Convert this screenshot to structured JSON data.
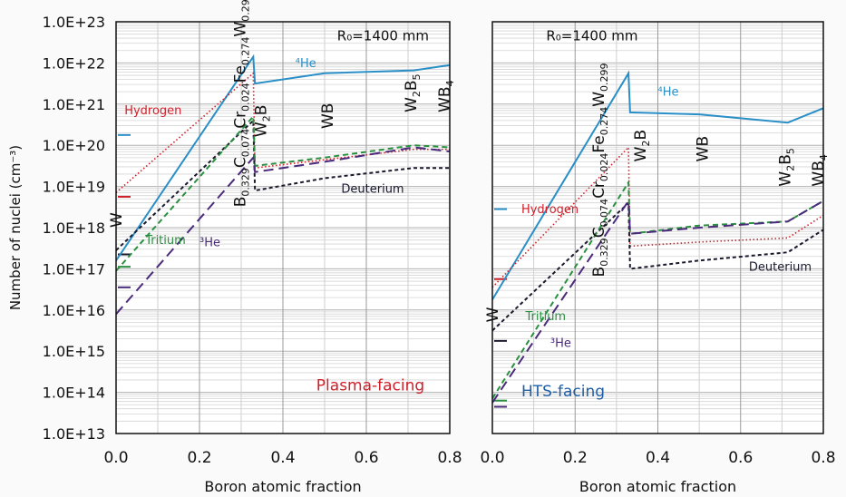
{
  "chart_data": [
    {
      "type": "line",
      "panel": "left",
      "annotation_R0": "R₀=1400 mm",
      "region_label": "Plasma-facing",
      "region_color": "#d0202a",
      "xlabel": "Boron atomic fraction",
      "ylabel": "Number of nuclei  (cm⁻³)",
      "yscale": "log",
      "ylim": [
        10000000000000.0,
        1e+23
      ],
      "xlim": [
        0,
        0.8
      ],
      "xticks": [
        "0.0",
        "0.2",
        "0.4",
        "0.6",
        "0.8"
      ],
      "yticks": [
        "1.0E+13",
        "1.0E+14",
        "1.0E+15",
        "1.0E+16",
        "1.0E+17",
        "1.0E+18",
        "1.0E+19",
        "1.0E+20",
        "1.0E+21",
        "1.0E+22",
        "1.0E+23"
      ],
      "grid": true,
      "series": [
        {
          "name": "4He",
          "label": "⁴He",
          "color": "#2a8fc7",
          "dash": "solid",
          "x": [
            0,
            0.329,
            0.333,
            0.5,
            0.714,
            0.8
          ],
          "log10y": [
            17.2,
            22.15,
            21.5,
            21.75,
            21.82,
            21.95
          ]
        },
        {
          "name": "Hydrogen",
          "label": "Hydrogen",
          "color": "#d0202a",
          "dash": "dot",
          "x": [
            0,
            0.329,
            0.333,
            0.5,
            0.714,
            0.8
          ],
          "log10y": [
            18.85,
            21.75,
            19.45,
            19.65,
            19.9,
            19.9
          ]
        },
        {
          "name": "Deuterium",
          "label": "Deuterium",
          "color": "#1a1a2e",
          "dash": "short",
          "x": [
            0,
            0.329,
            0.333,
            0.5,
            0.714,
            0.8
          ],
          "log10y": [
            17.45,
            20.6,
            18.9,
            19.2,
            19.45,
            19.45
          ]
        },
        {
          "name": "Tritium",
          "label": "Tritium",
          "color": "#2a9040",
          "dash": "medium",
          "x": [
            0,
            0.329,
            0.333,
            0.5,
            0.714,
            0.8
          ],
          "log10y": [
            16.95,
            20.7,
            19.5,
            19.7,
            20.0,
            19.95
          ]
        },
        {
          "name": "3He",
          "label": "³He",
          "color": "#4a2a7a",
          "dash": "long",
          "x": [
            0,
            0.329,
            0.333,
            0.5,
            0.714,
            0.8
          ],
          "log10y": [
            15.9,
            19.7,
            19.35,
            19.6,
            19.95,
            19.85
          ]
        }
      ],
      "axis_markers": [
        {
          "series": "4He",
          "log10y": 20.25,
          "color": "#2a8fc7"
        },
        {
          "series": "Hydrogen",
          "log10y": 18.75,
          "color": "#d0202a"
        },
        {
          "series": "Deuterium",
          "log10y": 17.35,
          "color": "#1a1a2e"
        },
        {
          "series": "Tritium",
          "log10y": 17.05,
          "color": "#2a9040"
        },
        {
          "series": "3He",
          "log10y": 16.55,
          "color": "#4a2a7a"
        }
      ],
      "compound_labels": [
        {
          "text": "W",
          "x": 0.0,
          "log10y": 18.0
        },
        {
          "text": "B0.329C0.074Cr0.024Fe0.274W0.299",
          "x": 0.31,
          "log10y": 18.5
        },
        {
          "text": "W2B",
          "x": 0.36,
          "log10y": 20.2
        },
        {
          "text": "WB",
          "x": 0.52,
          "log10y": 20.4
        },
        {
          "text": "W2B5",
          "x": 0.72,
          "log10y": 20.8
        },
        {
          "text": "WB4",
          "x": 0.8,
          "log10y": 20.8
        }
      ]
    },
    {
      "type": "line",
      "panel": "right",
      "annotation_R0": "R₀=1400 mm",
      "region_label": "HTS-facing",
      "region_color": "#1f5fa8",
      "xlabel": "Boron atomic fraction",
      "yscale": "log",
      "ylim": [
        10000000000000.0,
        1e+23
      ],
      "xlim": [
        0,
        0.8
      ],
      "xticks": [
        "0.0",
        "0.2",
        "0.4",
        "0.6",
        "0.8"
      ],
      "grid": true,
      "series": [
        {
          "name": "4He",
          "label": "⁴He",
          "color": "#2a8fc7",
          "dash": "solid",
          "x": [
            0,
            0.329,
            0.333,
            0.5,
            0.714,
            0.8
          ],
          "log10y": [
            16.25,
            21.75,
            20.8,
            20.75,
            20.55,
            20.9
          ]
        },
        {
          "name": "Hydrogen",
          "label": "Hydrogen",
          "color": "#d0202a",
          "dash": "dot",
          "x": [
            0,
            0.329,
            0.333,
            0.5,
            0.714,
            0.8
          ],
          "log10y": [
            16.55,
            19.95,
            17.55,
            17.65,
            17.75,
            18.3
          ]
        },
        {
          "name": "Deuterium",
          "label": "Deuterium",
          "color": "#1a1a2e",
          "dash": "short",
          "x": [
            0,
            0.329,
            0.333,
            0.5,
            0.714,
            0.8
          ],
          "log10y": [
            15.5,
            18.6,
            17.0,
            17.2,
            17.4,
            17.95
          ]
        },
        {
          "name": "Tritium",
          "label": "Tritium",
          "color": "#2a9040",
          "dash": "medium",
          "x": [
            0,
            0.329,
            0.333,
            0.5,
            0.714,
            0.8
          ],
          "log10y": [
            13.85,
            19.1,
            17.85,
            18.05,
            18.15,
            18.65
          ]
        },
        {
          "name": "3He",
          "label": "³He",
          "color": "#4a2a7a",
          "dash": "long",
          "x": [
            0,
            0.329,
            0.333,
            0.5,
            0.714,
            0.8
          ],
          "log10y": [
            13.75,
            18.65,
            17.85,
            18.0,
            18.15,
            18.65
          ]
        }
      ],
      "axis_markers": [
        {
          "series": "4He",
          "log10y": 18.45,
          "color": "#2a8fc7"
        },
        {
          "series": "Hydrogen",
          "log10y": 16.75,
          "color": "#d0202a"
        },
        {
          "series": "Deuterium",
          "log10y": 15.25,
          "color": "#1a1a2e"
        },
        {
          "series": "Tritium",
          "log10y": 13.8,
          "color": "#2a9040"
        },
        {
          "series": "3He",
          "log10y": 13.65,
          "color": "#4a2a7a"
        }
      ],
      "compound_labels": [
        {
          "text": "W",
          "x": 0.0,
          "log10y": 15.7
        },
        {
          "text": "B0.329C0.074Cr0.024Fe0.274W0.299",
          "x": 0.27,
          "log10y": 16.8
        },
        {
          "text": "W2B",
          "x": 0.37,
          "log10y": 19.6
        },
        {
          "text": "WB",
          "x": 0.52,
          "log10y": 19.6
        },
        {
          "text": "W2B5",
          "x": 0.72,
          "log10y": 19.0
        },
        {
          "text": "WB4",
          "x": 0.8,
          "log10y": 19.0
        }
      ]
    }
  ]
}
